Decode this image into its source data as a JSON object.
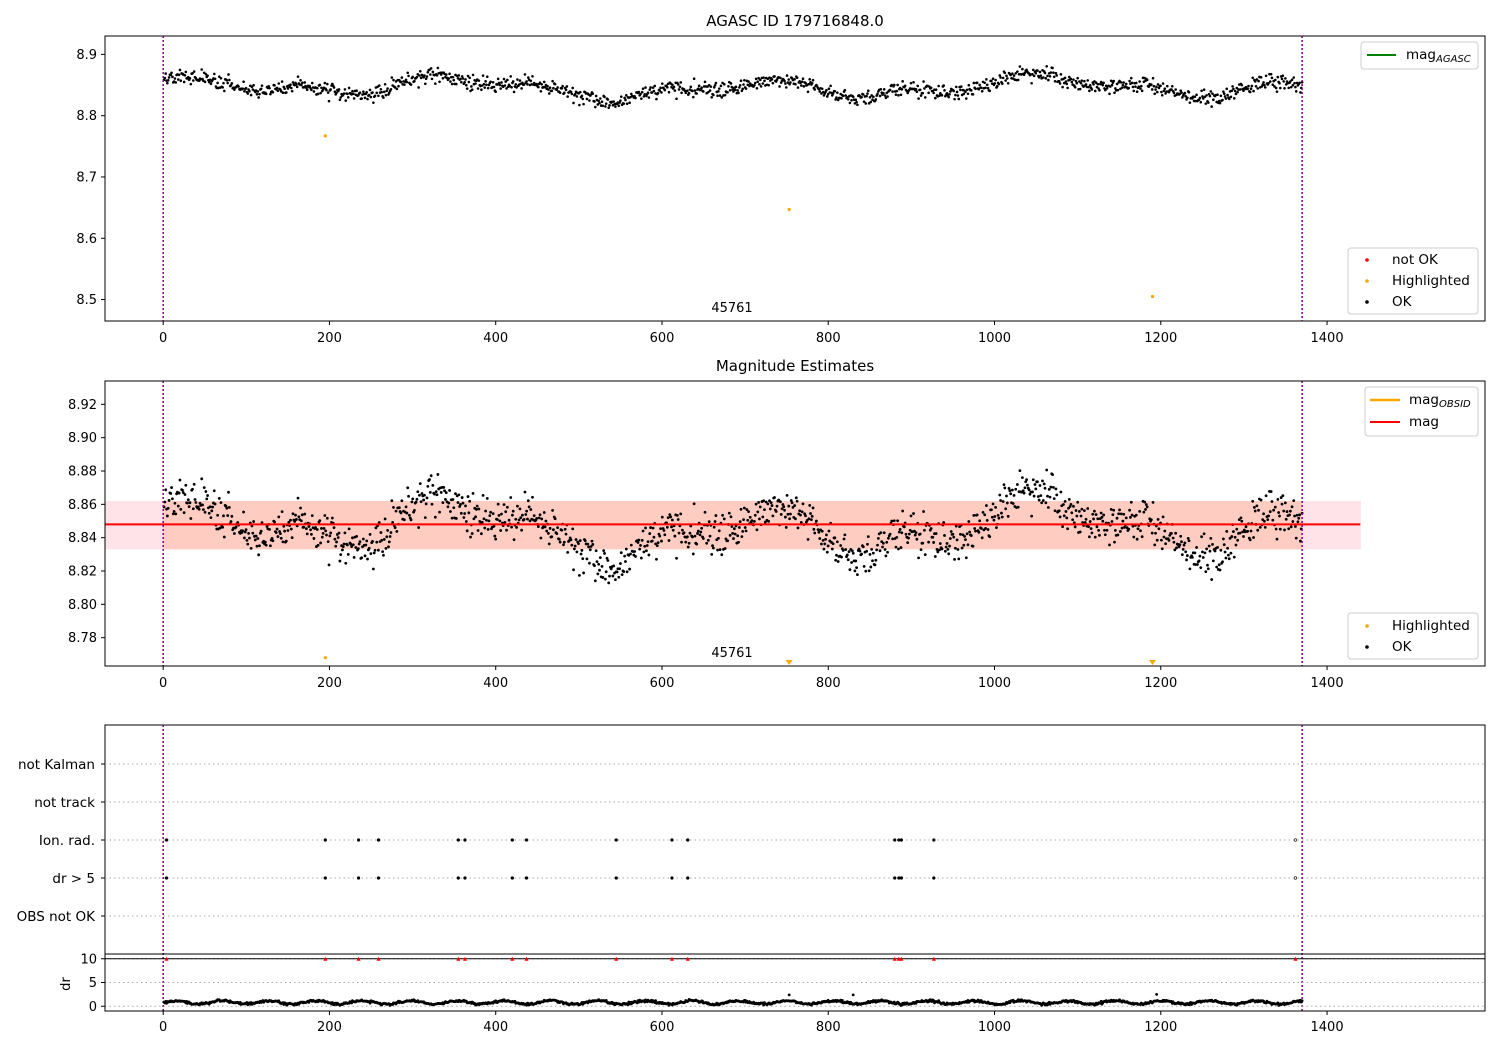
{
  "chart_data": [
    {
      "type": "scatter",
      "title": "AGASC ID 179716848.0",
      "xlim": [
        -70,
        1590
      ],
      "ylim": [
        8.465,
        8.93
      ],
      "x_ticks": [
        "0",
        "200",
        "400",
        "600",
        "800",
        "1000",
        "1200",
        "1400"
      ],
      "y_ticks": [
        "8.5",
        "8.6",
        "8.7",
        "8.8",
        "8.9"
      ],
      "vlines_x": [
        0,
        1370
      ],
      "annotation": {
        "text": "45761",
        "x": 685,
        "y": 8.477
      },
      "agasc_mag": 8.84,
      "legend_top": [
        {
          "label": "mag",
          "sub": "AGASC",
          "color": "#008000"
        }
      ],
      "legend_bottom": [
        {
          "label": "not OK",
          "color": "#ff0000"
        },
        {
          "label": "Highlighted",
          "color": "#ffa500"
        },
        {
          "label": "OK",
          "color": "#000000"
        }
      ],
      "series": [
        {
          "name": "Highlighted",
          "color": "#ffa500",
          "points": [
            [
              195,
              8.767
            ],
            [
              753,
              8.647
            ],
            [
              1190,
              8.505
            ]
          ]
        }
      ],
      "ok_series_note": "OK"
    },
    {
      "type": "scatter",
      "title": "Magnitude Estimates",
      "xlim": [
        -70,
        1590
      ],
      "ylim": [
        8.763,
        8.934
      ],
      "x_ticks": [
        "0",
        "200",
        "400",
        "600",
        "800",
        "1000",
        "1200",
        "1400"
      ],
      "y_ticks": [
        "8.78",
        "8.80",
        "8.82",
        "8.84",
        "8.86",
        "8.88",
        "8.90",
        "8.92"
      ],
      "vlines_x": [
        0,
        1370
      ],
      "annotation": {
        "text": "45761",
        "x": 685,
        "y": 8.768
      },
      "mag": 8.848,
      "mag_band": [
        8.833,
        8.862
      ],
      "mag_band_x": [
        -70,
        1440
      ],
      "obsid_band": [
        8.833,
        8.862
      ],
      "obsid_band_x": [
        0,
        1370
      ],
      "legend_top": [
        {
          "label": "mag",
          "sub": "OBSID",
          "color": "#ffa500"
        },
        {
          "label": "mag",
          "sub": "",
          "color": "#ff0000"
        }
      ],
      "legend_bottom": [
        {
          "label": "Highlighted",
          "color": "#ffa500"
        },
        {
          "label": "OK",
          "color": "#000000"
        }
      ],
      "series": [
        {
          "name": "Highlighted",
          "color": "#ffa500",
          "points": [
            [
              195,
              8.768
            ]
          ],
          "clipped_markers_x": [
            753,
            1190
          ]
        }
      ]
    },
    {
      "type": "scatter",
      "title": "",
      "xlim": [
        -70,
        1590
      ],
      "categories": [
        "not Kalman",
        "not track",
        "Ion. rad.",
        "dr > 5",
        "OBS not OK"
      ],
      "flag_x": [
        4,
        195,
        235,
        259,
        355,
        363,
        420,
        437,
        545,
        612,
        631,
        880,
        885,
        888,
        927,
        1362
      ],
      "dr_panel": {
        "ylabel": "dr",
        "y_ticks": [
          "0",
          "5",
          "10"
        ],
        "ylim": [
          -1,
          11
        ],
        "hline_y": 10,
        "spikes": [
          [
            753,
            2.4
          ],
          [
            830,
            2.4
          ],
          [
            1195,
            2.5
          ]
        ],
        "flag_marker_y": 10
      },
      "x_ticks": [
        "0",
        "200",
        "400",
        "600",
        "800",
        "1000",
        "1200",
        "1400"
      ]
    }
  ]
}
